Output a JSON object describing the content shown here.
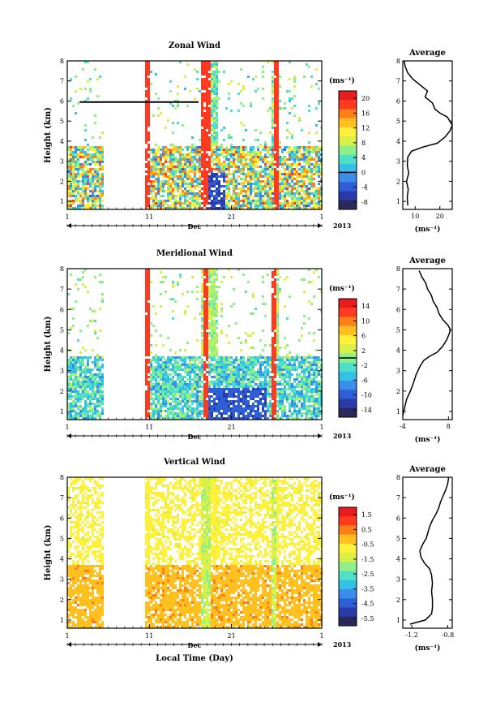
{
  "chart_data": [
    {
      "type": "heatmap",
      "title": "Zonal Wind",
      "ylabel": "Height (km)",
      "xticks": [
        "1",
        "11",
        "21",
        "1"
      ],
      "xsub": "Dec",
      "year": "2013",
      "yticks": [
        "1",
        "2",
        "3",
        "4",
        "5",
        "6",
        "7",
        "8"
      ],
      "ylim": [
        0.6,
        8
      ],
      "colorbar": {
        "unit": "(ms⁻¹)",
        "labels": [
          "20",
          "16",
          "12",
          "8",
          "4",
          "0",
          "-4",
          "-8"
        ],
        "range": [
          -10,
          22
        ],
        "zero_line": 0
      },
      "profile": {
        "title": "Average",
        "xlabel": "(ms⁻¹)",
        "xticks": [
          "10",
          "20"
        ],
        "xlim": [
          5,
          25
        ],
        "heights": [
          0.8,
          1.2,
          1.6,
          2.0,
          2.4,
          2.8,
          3.2,
          3.5,
          3.7,
          3.9,
          4.2,
          4.5,
          4.8,
          5.0,
          5.2,
          5.4,
          5.6,
          5.9,
          6.2,
          6.5,
          6.8,
          7.1,
          7.4,
          7.7,
          8.0
        ],
        "values": [
          7,
          6.8,
          7.2,
          6.5,
          7.4,
          6.8,
          7.0,
          8.5,
          13,
          19,
          22,
          24,
          25,
          24,
          23,
          20,
          18,
          17,
          14,
          15,
          12,
          9,
          7,
          6,
          5.5
        ]
      }
    },
    {
      "type": "heatmap",
      "title": "Meridional Wind",
      "ylabel": "Height (km)",
      "xticks": [
        "1",
        "11",
        "21",
        "1"
      ],
      "xsub": "Dec",
      "year": "2013",
      "yticks": [
        "1",
        "2",
        "3",
        "4",
        "5",
        "6",
        "7",
        "8"
      ],
      "ylim": [
        0.6,
        8
      ],
      "colorbar": {
        "unit": "(ms⁻¹)",
        "labels": [
          "14",
          "10",
          "6",
          "2",
          "-2",
          "-6",
          "-10",
          "-14"
        ],
        "range": [
          -16,
          16
        ],
        "zero_line": 0
      },
      "profile": {
        "title": "Average",
        "xlabel": "(ms⁻¹)",
        "xticks": [
          "-4",
          "8"
        ],
        "xlim": [
          -4,
          9
        ],
        "heights": [
          0.8,
          1.2,
          1.6,
          2.0,
          2.4,
          2.8,
          3.2,
          3.5,
          3.7,
          3.9,
          4.2,
          4.5,
          4.8,
          5.0,
          5.2,
          5.5,
          5.8,
          6.1,
          6.4,
          6.7,
          7.0,
          7.3,
          7.6,
          7.9
        ],
        "values": [
          -4,
          -3.5,
          -3,
          -2,
          -1.2,
          -0.5,
          0.5,
          1.5,
          3,
          5,
          6.5,
          7.5,
          8.2,
          8.5,
          8,
          6.5,
          5.5,
          5,
          4,
          3.5,
          2.5,
          2,
          1,
          0.3
        ]
      }
    },
    {
      "type": "heatmap",
      "title": "Vertical Wind",
      "ylabel": "Height (km)",
      "xlabel": "Local Time (Day)",
      "xticks": [
        "1",
        "11",
        "21",
        "1"
      ],
      "xsub": "Dec",
      "year": "2013",
      "yticks": [
        "1",
        "2",
        "3",
        "4",
        "5",
        "6",
        "7",
        "8"
      ],
      "ylim": [
        0.6,
        8
      ],
      "colorbar": {
        "unit": "(ms⁻¹)",
        "labels": [
          "1.5",
          "0.5",
          "-0.5",
          "-1.5",
          "-2.5",
          "-3.5",
          "-4.5",
          "-5.5"
        ],
        "range": [
          -6,
          2
        ]
      },
      "profile": {
        "title": "Average",
        "xlabel": "(ms⁻¹)",
        "xticks": [
          "-1.2",
          "-0.8"
        ],
        "xlim": [
          -1.3,
          -0.75
        ],
        "heights": [
          0.8,
          1.0,
          1.3,
          1.6,
          2.0,
          2.4,
          2.8,
          3.2,
          3.5,
          3.8,
          4.1,
          4.4,
          4.7,
          5.0,
          5.3,
          5.6,
          5.9,
          6.2,
          6.5,
          6.8,
          7.1,
          7.4,
          7.7,
          8.0
        ],
        "values": [
          -1.22,
          -1.05,
          -0.98,
          -0.97,
          -0.97,
          -0.98,
          -0.97,
          -0.98,
          -1.0,
          -1.06,
          -1.1,
          -1.11,
          -1.08,
          -1.04,
          -1.02,
          -1.0,
          -0.97,
          -0.93,
          -0.9,
          -0.88,
          -0.85,
          -0.82,
          -0.8,
          -0.79
        ]
      }
    }
  ]
}
